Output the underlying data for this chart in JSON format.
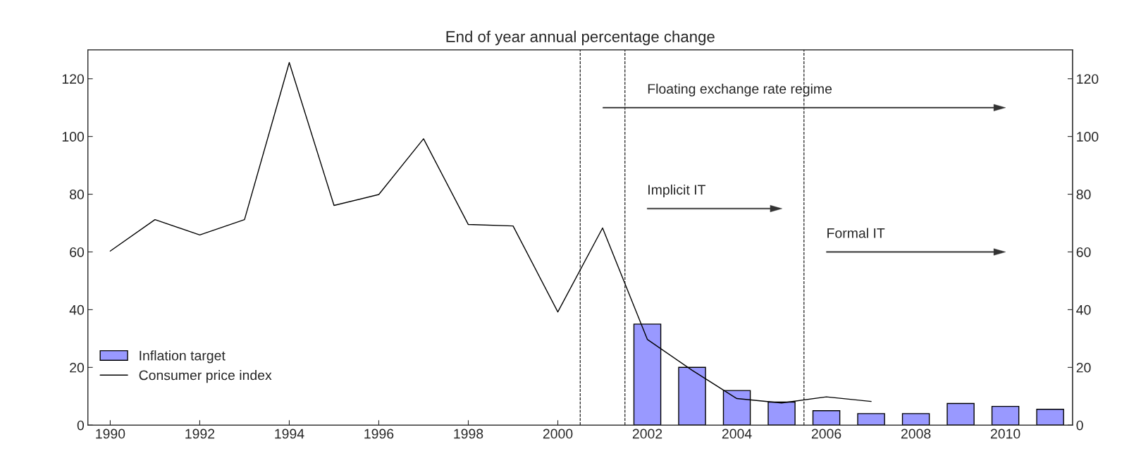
{
  "chart_data": {
    "type": "bar",
    "title": "End of year annual percentage change",
    "x": [
      1990,
      1991,
      1992,
      1993,
      1994,
      1995,
      1996,
      1997,
      1998,
      1999,
      2000,
      2001,
      2002,
      2003,
      2004,
      2005,
      2006,
      2007,
      2008,
      2009,
      2010,
      2011
    ],
    "series": [
      {
        "name": "Inflation target",
        "color": "#9999ff",
        "values": [
          null,
          null,
          null,
          null,
          null,
          null,
          null,
          null,
          null,
          null,
          null,
          null,
          35,
          20,
          12,
          8,
          5,
          4,
          4,
          7.5,
          6.5,
          5.5
        ]
      },
      {
        "name": "Consumer price index",
        "type": "line",
        "color": "#000000",
        "values": [
          60.3,
          71.2,
          65.9,
          71.2,
          125.6,
          76.1,
          79.9,
          99.2,
          69.5,
          69.0,
          39.2,
          68.3,
          29.7,
          19,
          9.2,
          7.7,
          9.8,
          8.2,
          null,
          null,
          null,
          null
        ]
      }
    ],
    "annotations": [
      "Floating exchange rate regime",
      "Implicit IT",
      "Formal IT"
    ],
    "xlim": [
      1989.5,
      2011.5
    ],
    "xticks": [
      1990,
      1992,
      1994,
      1996,
      1998,
      2000,
      2002,
      2004,
      2006,
      2008,
      2010
    ],
    "ylim": [
      0,
      130
    ],
    "yticks": [
      0,
      20,
      40,
      60,
      80,
      100,
      120
    ],
    "y2lim": [
      0,
      130
    ],
    "y2ticks": [
      0,
      20,
      40,
      60,
      80,
      100,
      120
    ],
    "ref_lines": [
      {
        "axis": "x",
        "value": 2000.5,
        "line_style": "dashed",
        "color": "#000000"
      },
      {
        "axis": "x",
        "value": 2001.5,
        "line_style": "dashed",
        "color": "#000000"
      },
      {
        "axis": "x",
        "value": 2005.5,
        "line_style": "dashed",
        "color": "#000000"
      }
    ],
    "legend": "bottom left"
  }
}
